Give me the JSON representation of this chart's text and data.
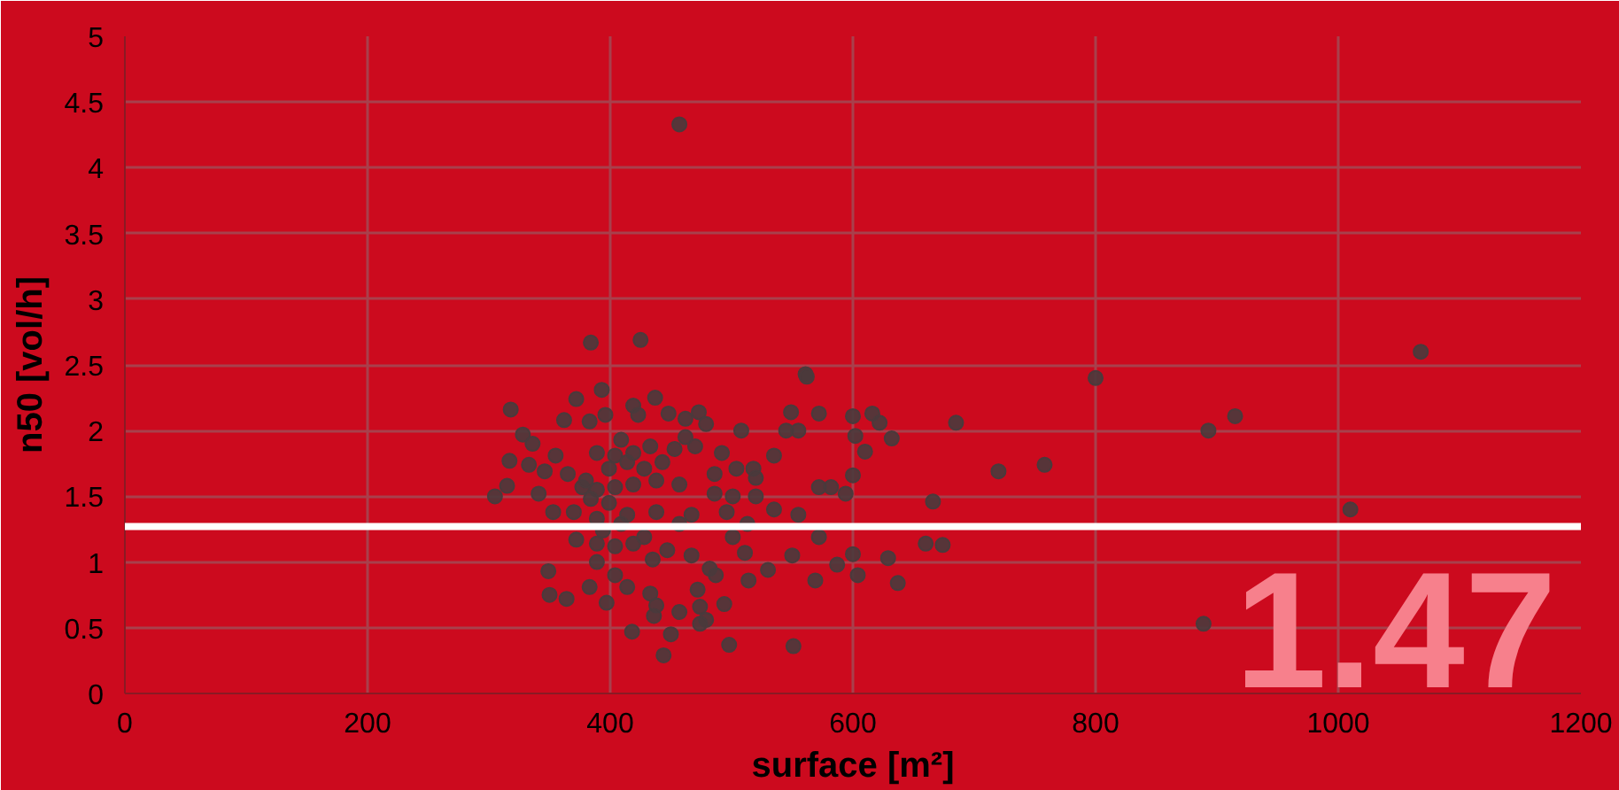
{
  "chart_data": {
    "type": "scatter",
    "xlabel": "surface [m²]",
    "ylabel": "n50 [vol/h]",
    "xlim": [
      0,
      1200
    ],
    "ylim": [
      0,
      5
    ],
    "xticks": [
      0,
      200,
      400,
      600,
      800,
      1000,
      1200
    ],
    "yticks": [
      0,
      0.5,
      1,
      1.5,
      2,
      2.5,
      3,
      3.5,
      4,
      4.5,
      5
    ],
    "grid": true,
    "marker": "circle",
    "ref_lines": [
      {
        "axis": "y",
        "value": 1.27,
        "color": "#ffffff",
        "line_style": "solid"
      }
    ],
    "annotations": [
      {
        "text": "1.47"
      }
    ],
    "series": [
      {
        "color": "#4a3a3c",
        "x": [
          457,
          425,
          561,
          800,
          1068,
          915,
          893,
          1010,
          889,
          758,
          720,
          685,
          666,
          660,
          674,
          632,
          616,
          622,
          600,
          602,
          610,
          600,
          600,
          629,
          604,
          637,
          562,
          384,
          318,
          317,
          315,
          305,
          328,
          333,
          349,
          350,
          364,
          372,
          362,
          393,
          383,
          396,
          419,
          423,
          437,
          448,
          462,
          473,
          479,
          508,
          545,
          549,
          572,
          555,
          409,
          389,
          404,
          419,
          433,
          453,
          470,
          492,
          504,
          518,
          520,
          535,
          346,
          365,
          377,
          389,
          404,
          419,
          438,
          457,
          486,
          501,
          520,
          572,
          582,
          594,
          535,
          353,
          370,
          389,
          414,
          438,
          467,
          496,
          555,
          372,
          389,
          404,
          419,
          435,
          447,
          467,
          482,
          487,
          511,
          501,
          530,
          550,
          572,
          569,
          587,
          514,
          472,
          474,
          479,
          474,
          494,
          457,
          433,
          438,
          436,
          450,
          418,
          444,
          498,
          551,
          397,
          383,
          404,
          414,
          389,
          399,
          414,
          428,
          443,
          384,
          399,
          409,
          428,
          394,
          380,
          462,
          486,
          513,
          457,
          341,
          336,
          355
        ],
        "values": [
          4.33,
          2.69,
          2.43,
          2.4,
          2.6,
          2.11,
          2.0,
          1.4,
          0.53,
          1.74,
          1.69,
          2.06,
          1.46,
          1.14,
          1.13,
          1.94,
          2.13,
          2.06,
          2.11,
          1.96,
          1.84,
          1.66,
          1.06,
          1.03,
          0.9,
          0.84,
          2.41,
          2.67,
          2.16,
          1.77,
          1.58,
          1.5,
          1.97,
          1.74,
          0.93,
          0.75,
          0.72,
          2.24,
          2.08,
          2.31,
          2.07,
          2.12,
          2.19,
          2.12,
          2.25,
          2.13,
          2.09,
          2.14,
          2.05,
          2.0,
          2.0,
          2.14,
          2.13,
          2.0,
          1.93,
          1.83,
          1.81,
          1.83,
          1.88,
          1.86,
          1.88,
          1.83,
          1.71,
          1.71,
          1.64,
          1.81,
          1.69,
          1.67,
          1.57,
          1.55,
          1.57,
          1.59,
          1.62,
          1.59,
          1.52,
          1.5,
          1.5,
          1.57,
          1.57,
          1.52,
          1.4,
          1.38,
          1.38,
          1.33,
          1.36,
          1.38,
          1.36,
          1.38,
          1.36,
          1.17,
          1.14,
          1.12,
          1.14,
          1.02,
          1.09,
          1.05,
          0.95,
          0.9,
          1.07,
          1.19,
          0.94,
          1.05,
          1.19,
          0.86,
          0.98,
          0.86,
          0.79,
          0.66,
          0.56,
          0.53,
          0.68,
          0.62,
          0.76,
          0.67,
          0.59,
          0.45,
          0.47,
          0.29,
          0.37,
          0.36,
          0.69,
          0.81,
          0.9,
          0.81,
          1.0,
          1.71,
          1.76,
          1.71,
          1.76,
          1.48,
          1.45,
          1.29,
          1.19,
          1.24,
          1.62,
          1.95,
          1.67,
          1.29,
          1.29,
          1.52,
          1.9,
          1.81
        ]
      }
    ]
  }
}
